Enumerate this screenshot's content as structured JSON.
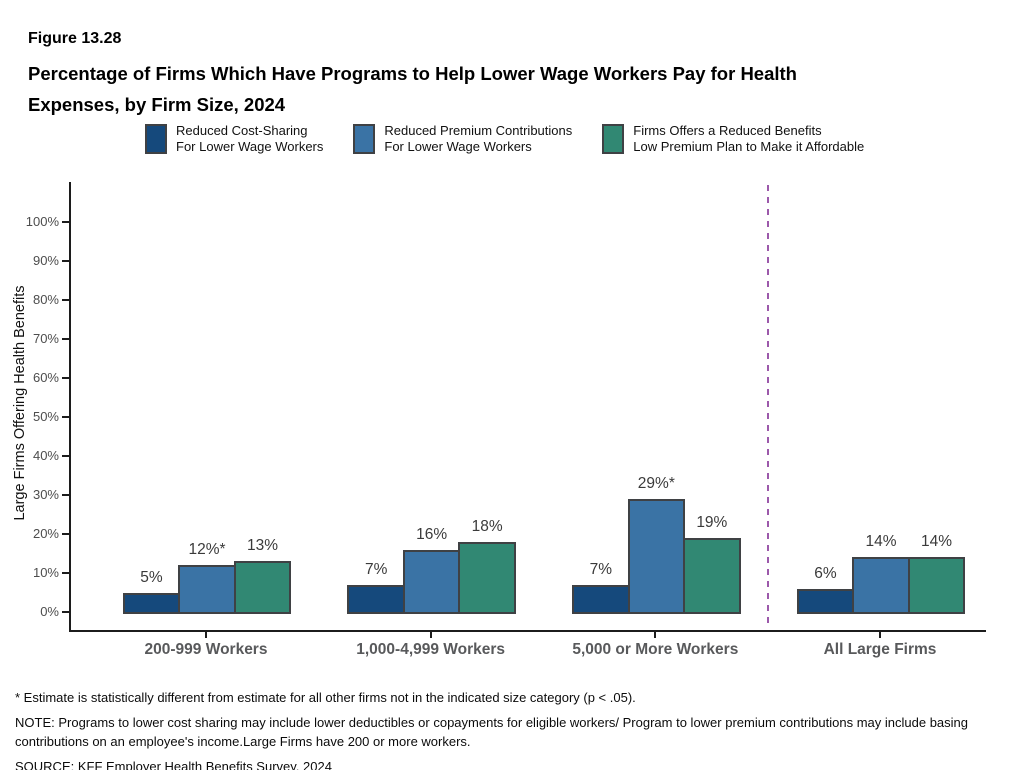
{
  "figure_label": "Figure 13.28",
  "title_line1": "Percentage of Firms Which Have Programs to Help Lower Wage Workers Pay for Health",
  "title_line2": "Expenses, by Firm Size, 2024",
  "chart_data": {
    "type": "bar",
    "title": "Percentage of Firms Which Have Programs to Help Lower Wage Workers Pay for Health Expenses, by Firm Size, 2024",
    "categories": [
      "200-999 Workers",
      "1,000-4,999 Workers",
      "5,000 or More Workers",
      "All Large Firms"
    ],
    "series": [
      {
        "name": "Reduced Cost-Sharing\nFor Lower Wage Workers",
        "color": "#15497c",
        "values": [
          5,
          7,
          7,
          6
        ],
        "labels": [
          "5%",
          "7%",
          "7%",
          "6%"
        ]
      },
      {
        "name": "Reduced Premium Contributions\nFor Lower Wage Workers",
        "color": "#3a73a5",
        "values": [
          12,
          16,
          29,
          14
        ],
        "labels": [
          "12%*",
          "16%",
          "29%*",
          "14%"
        ]
      },
      {
        "name": "Firms Offers a Reduced Benefits\nLow Premium Plan to Make it Affordable",
        "color": "#318873",
        "values": [
          13,
          18,
          19,
          14
        ],
        "labels": [
          "13%",
          "18%",
          "19%",
          "14%"
        ]
      }
    ],
    "ylabel": "Large Firms Offering Health Benefits",
    "xlabel": "",
    "ylim": [
      0,
      100
    ],
    "y_ticks": [
      "0%",
      "10%",
      "20%",
      "30%",
      "40%",
      "50%",
      "60%",
      "70%",
      "80%",
      "90%",
      "100%"
    ],
    "grid": "off",
    "legend_position": "top",
    "separator_before_category": "All Large Firms",
    "separator_color": "#9c59ab",
    "bar_border_color": "#3f4144"
  },
  "footnotes": {
    "star": "* Estimate is statistically different from estimate for all other firms not in the indicated size category (p < .05).",
    "note": "NOTE: Programs to lower cost sharing may include lower deductibles or copayments for eligible workers/ Program to lower premium contributions may include basing contributions on an employee's income.Large Firms have 200 or more workers.",
    "source": "SOURCE: KFF Employer Health Benefits Survey, 2024"
  }
}
